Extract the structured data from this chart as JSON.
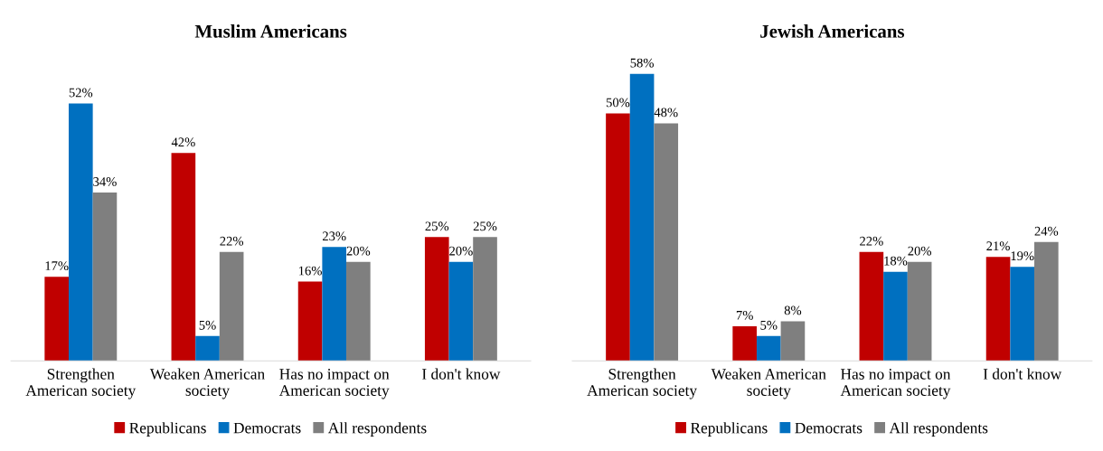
{
  "chart_data": [
    {
      "type": "bar",
      "title": "Muslim Americans",
      "categories": [
        "Strengthen\nAmerican society",
        "Weaken American\nsociety",
        "Has no impact on\nAmerican society",
        "I don't know"
      ],
      "legend": "bottom",
      "grid": false,
      "series": [
        {
          "name": "Republicans",
          "color": "#c00000",
          "values": [
            17,
            42,
            16,
            25
          ],
          "value_labels": [
            "17%",
            "42%",
            "16%",
            "25%"
          ]
        },
        {
          "name": "Democrats",
          "color": "#0070c0",
          "values": [
            52,
            5,
            23,
            20
          ],
          "value_labels": [
            "52%",
            "5%",
            "23%",
            "20%"
          ]
        },
        {
          "name": "All respondents",
          "color": "#7f7f7f",
          "values": [
            34,
            22,
            20,
            25
          ],
          "value_labels": [
            "34%",
            "22%",
            "20%",
            "25%"
          ]
        }
      ]
    },
    {
      "type": "bar",
      "title": "Jewish Americans",
      "categories": [
        "Strengthen\nAmerican society",
        "Weaken American\nsociety",
        "Has no impact on\nAmerican society",
        "I don't know"
      ],
      "legend": "bottom",
      "grid": false,
      "series": [
        {
          "name": "Republicans",
          "color": "#c00000",
          "values": [
            50,
            7,
            22,
            21
          ],
          "value_labels": [
            "50%",
            "7%",
            "22%",
            "21%"
          ]
        },
        {
          "name": "Democrats",
          "color": "#0070c0",
          "values": [
            58,
            5,
            18,
            19
          ],
          "value_labels": [
            "58%",
            "5%",
            "18%",
            "19%"
          ]
        },
        {
          "name": "All respondents",
          "color": "#7f7f7f",
          "values": [
            48,
            8,
            20,
            24
          ],
          "value_labels": [
            "48%",
            "8%",
            "20%",
            "24%"
          ]
        }
      ]
    }
  ]
}
